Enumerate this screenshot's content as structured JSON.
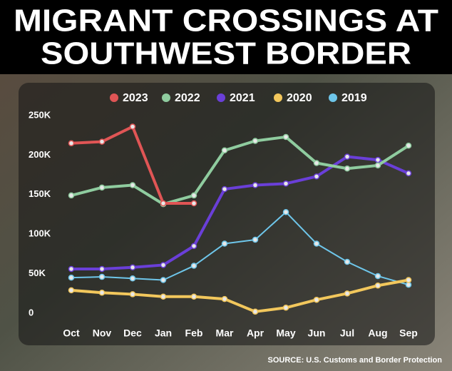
{
  "chart_data": {
    "type": "line",
    "title_lines": [
      "MIGRANT CROSSINGS AT",
      "SOUTHWEST BORDER"
    ],
    "source": "SOURCE: U.S. Customs and Border Protection",
    "categories": [
      "Oct",
      "Nov",
      "Dec",
      "Jan",
      "Feb",
      "Mar",
      "Apr",
      "May",
      "Jun",
      "Jul",
      "Aug",
      "Sep"
    ],
    "series": [
      {
        "name": "2023",
        "color": "#e05555",
        "values": [
          224000,
          226000,
          245000,
          148000,
          148000,
          null,
          null,
          null,
          null,
          null,
          null,
          null
        ]
      },
      {
        "name": "2022",
        "color": "#8fcc9f",
        "values": [
          158000,
          168000,
          171000,
          147000,
          158000,
          215000,
          227000,
          232000,
          199000,
          192000,
          196000,
          221000
        ]
      },
      {
        "name": "2021",
        "color": "#6a3fd8",
        "values": [
          65000,
          65000,
          67000,
          70000,
          94000,
          166000,
          171000,
          173000,
          182000,
          207000,
          203000,
          186000
        ]
      },
      {
        "name": "2020",
        "color": "#f2c75c",
        "values": [
          38000,
          35000,
          33000,
          30000,
          30000,
          27000,
          11000,
          16000,
          26000,
          34000,
          44000,
          51000
        ]
      },
      {
        "name": "2019",
        "color": "#6ec6ea",
        "values": [
          54000,
          55000,
          53000,
          51000,
          69000,
          97000,
          102000,
          137000,
          97000,
          74000,
          56000,
          45000
        ]
      }
    ],
    "ylim": [
      0,
      250000
    ],
    "yticks": [
      0,
      {
        "value": 50000,
        "label": "50K"
      },
      {
        "value": 100000,
        "label": "100K"
      },
      {
        "value": 150000,
        "label": "150K"
      },
      {
        "value": 200000,
        "label": "200K"
      },
      {
        "value": 250000,
        "label": "250K"
      }
    ]
  }
}
